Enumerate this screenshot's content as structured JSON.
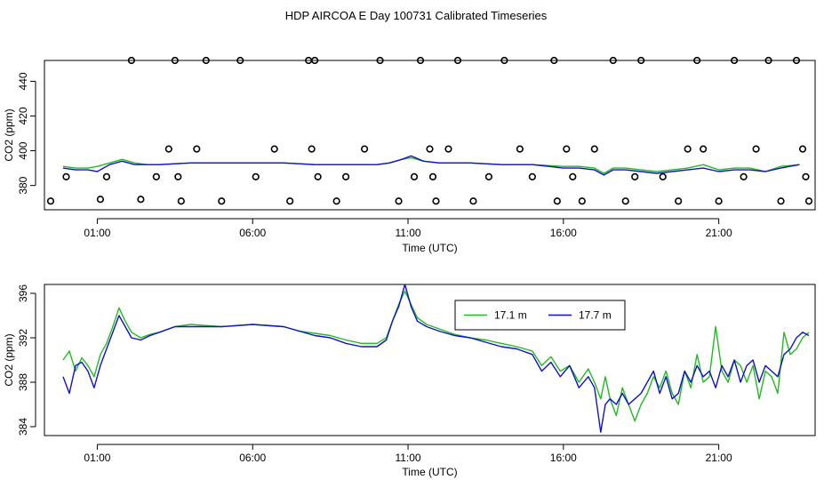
{
  "title": "HDP AIRCOA E  Day 100731  Calibrated Timeseries",
  "colors": {
    "green": "#22bb22",
    "blue": "#1111cc",
    "axis": "#000000"
  },
  "chart_data": [
    {
      "type": "line",
      "name": "calibration-panel",
      "xlabel": "Time (UTC)",
      "ylabel": "CO2 (ppm)",
      "xlim": [
        -0.7,
        24.1
      ],
      "ylim": [
        366,
        452
      ],
      "xticks": [
        1,
        6,
        11,
        16,
        21
      ],
      "xtick_labels": [
        "01:00",
        "06:00",
        "11:00",
        "16:00",
        "21:00"
      ],
      "yticks": [
        380,
        400,
        420,
        440
      ],
      "ytick_labels": [
        "380",
        "400",
        "420",
        "440"
      ],
      "series": [
        {
          "color": "green",
          "x": [
            -0.1,
            0.3,
            0.7,
            1.0,
            1.4,
            1.8,
            2.2,
            2.6,
            3.0,
            4,
            5,
            6,
            7,
            8,
            9,
            10,
            10.4,
            10.8,
            11.1,
            11.5,
            12,
            13,
            14,
            15,
            16,
            16.5,
            17,
            17.3,
            17.6,
            18,
            18.5,
            19,
            19.5,
            20,
            20.5,
            21,
            21.5,
            22,
            22.5,
            23,
            23.6
          ],
          "y": [
            391,
            390,
            390,
            391,
            393,
            395,
            393,
            392,
            392,
            393,
            393,
            393,
            393,
            392,
            392,
            392,
            393,
            395,
            396,
            394,
            393,
            393,
            392,
            392,
            391,
            391,
            390,
            387,
            390,
            390,
            389,
            388,
            389,
            390,
            392,
            389,
            390,
            390,
            388,
            391,
            392
          ]
        },
        {
          "color": "blue",
          "x": [
            -0.1,
            0.3,
            0.7,
            1.0,
            1.4,
            1.8,
            2.2,
            2.6,
            3.0,
            4,
            5,
            6,
            7,
            8,
            9,
            10,
            10.4,
            10.8,
            11.1,
            11.5,
            12,
            13,
            14,
            15,
            16,
            16.5,
            17,
            17.3,
            17.6,
            18,
            18.5,
            19,
            19.5,
            20,
            20.5,
            21,
            21.5,
            22,
            22.5,
            23,
            23.6
          ],
          "y": [
            390,
            389,
            389,
            388,
            392,
            394,
            392,
            392,
            392,
            393,
            393,
            393,
            393,
            392,
            392,
            392,
            393,
            395,
            397,
            394,
            393,
            393,
            392,
            392,
            390,
            390,
            389,
            386,
            389,
            389,
            388,
            387,
            388,
            389,
            390,
            388,
            389,
            389,
            388,
            390,
            392
          ]
        }
      ],
      "points": {
        "x": [
          -0.5,
          0.0,
          1.1,
          1.3,
          2.1,
          2.4,
          2.9,
          3.3,
          3.5,
          3.6,
          3.7,
          4.2,
          4.5,
          5.0,
          5.6,
          6.1,
          6.7,
          7.2,
          7.8,
          7.9,
          8.0,
          8.1,
          8.7,
          9.0,
          9.6,
          10.1,
          10.7,
          11.2,
          11.4,
          11.7,
          11.8,
          11.9,
          12.3,
          12.6,
          13.1,
          13.6,
          14.1,
          14.6,
          15.0,
          15.7,
          15.8,
          16.1,
          16.3,
          16.6,
          17.0,
          17.6,
          18.0,
          18.3,
          18.5,
          19.2,
          19.7,
          20.0,
          20.3,
          20.5,
          21.0,
          21.5,
          21.8,
          22.2,
          22.6,
          23.0,
          23.5,
          23.7,
          23.8,
          23.9
        ],
        "y": [
          371,
          385,
          372,
          385,
          452,
          372,
          385,
          401,
          452,
          385,
          371,
          401,
          452,
          371,
          452,
          385,
          401,
          371,
          452,
          401,
          452,
          385,
          371,
          385,
          401,
          452,
          371,
          385,
          452,
          401,
          385,
          371,
          401,
          452,
          371,
          385,
          452,
          401,
          385,
          452,
          371,
          401,
          385,
          371,
          401,
          452,
          371,
          385,
          452,
          385,
          371,
          401,
          452,
          401,
          371,
          452,
          385,
          401,
          452,
          371,
          452,
          401,
          385,
          371
        ]
      }
    },
    {
      "type": "line",
      "name": "timeseries-panel",
      "xlabel": "Time (UTC)",
      "ylabel": "CO2 (ppm)",
      "xlim": [
        -0.7,
        24.1
      ],
      "ylim": [
        383.2,
        396.8
      ],
      "xticks": [
        1,
        6,
        11,
        16,
        21
      ],
      "xtick_labels": [
        "01:00",
        "06:00",
        "11:00",
        "16:00",
        "21:00"
      ],
      "yticks": [
        384,
        388,
        392,
        396
      ],
      "ytick_labels": [
        "384",
        "388",
        "392",
        "396"
      ],
      "legend": {
        "position": "top-center",
        "entries": [
          "17.1 m",
          "17.7 m"
        ]
      },
      "series": [
        {
          "name": "17.1 m",
          "color": "green",
          "x": [
            -0.1,
            0.1,
            0.3,
            0.5,
            0.7,
            0.9,
            1.1,
            1.3,
            1.5,
            1.7,
            1.9,
            2.1,
            2.4,
            2.7,
            3.0,
            3.5,
            4.0,
            5.0,
            6.0,
            7.0,
            7.5,
            8.0,
            8.5,
            9.0,
            9.5,
            10.0,
            10.3,
            10.5,
            10.7,
            10.9,
            11.1,
            11.3,
            11.6,
            12.0,
            12.5,
            13.0,
            13.5,
            14.0,
            14.5,
            15.0,
            15.3,
            15.6,
            15.9,
            16.2,
            16.5,
            16.8,
            17.0,
            17.2,
            17.35,
            17.5,
            17.7,
            17.9,
            18.1,
            18.3,
            18.5,
            18.7,
            18.9,
            19.1,
            19.3,
            19.5,
            19.7,
            19.9,
            20.1,
            20.3,
            20.5,
            20.7,
            20.9,
            21.1,
            21.3,
            21.5,
            21.7,
            21.9,
            22.1,
            22.3,
            22.5,
            22.7,
            22.9,
            23.1,
            23.3,
            23.5,
            23.7,
            23.9
          ],
          "y": [
            390.0,
            390.8,
            389.0,
            390.2,
            389.5,
            388.5,
            390.5,
            391.5,
            393.0,
            394.7,
            393.5,
            392.5,
            392.0,
            392.3,
            392.5,
            393.0,
            393.2,
            393.0,
            393.2,
            393.0,
            392.6,
            392.4,
            392.2,
            391.8,
            391.5,
            391.5,
            392.0,
            393.5,
            395.0,
            396.2,
            395.0,
            393.8,
            393.2,
            392.8,
            392.3,
            392.0,
            391.8,
            391.5,
            391.2,
            390.8,
            389.5,
            390.3,
            389.0,
            389.5,
            388.0,
            389.2,
            388.0,
            386.5,
            388.5,
            386.5,
            385.0,
            387.5,
            386.0,
            384.5,
            386.0,
            387.0,
            388.5,
            387.5,
            389.0,
            387.0,
            386.0,
            389.0,
            387.5,
            390.5,
            388.0,
            388.5,
            393.0,
            389.0,
            388.0,
            390.0,
            389.5,
            388.0,
            389.5,
            386.5,
            389.0,
            388.5,
            387.0,
            392.5,
            390.5,
            391.0,
            392.0,
            392.5
          ]
        },
        {
          "name": "17.7 m",
          "color": "blue",
          "x": [
            -0.1,
            0.1,
            0.3,
            0.5,
            0.7,
            0.9,
            1.1,
            1.3,
            1.5,
            1.7,
            1.9,
            2.1,
            2.4,
            2.7,
            3.0,
            3.5,
            4.0,
            5.0,
            6.0,
            7.0,
            7.5,
            8.0,
            8.5,
            9.0,
            9.5,
            10.0,
            10.3,
            10.5,
            10.7,
            10.9,
            11.1,
            11.3,
            11.6,
            12.0,
            12.5,
            13.0,
            13.5,
            14.0,
            14.5,
            15.0,
            15.3,
            15.6,
            15.9,
            16.2,
            16.5,
            16.8,
            17.0,
            17.2,
            17.35,
            17.5,
            17.7,
            17.9,
            18.1,
            18.3,
            18.5,
            18.7,
            18.9,
            19.1,
            19.3,
            19.5,
            19.7,
            19.9,
            20.1,
            20.3,
            20.5,
            20.7,
            20.9,
            21.1,
            21.3,
            21.5,
            21.7,
            21.9,
            22.1,
            22.3,
            22.5,
            22.7,
            22.9,
            23.1,
            23.3,
            23.5,
            23.7,
            23.9
          ],
          "y": [
            388.5,
            387.0,
            389.5,
            389.8,
            389.0,
            387.5,
            389.5,
            391.0,
            392.5,
            394.0,
            393.0,
            392.0,
            391.8,
            392.2,
            392.5,
            393.0,
            393.0,
            393.0,
            393.2,
            393.0,
            392.6,
            392.2,
            392.0,
            391.5,
            391.2,
            391.2,
            391.8,
            393.5,
            394.8,
            396.8,
            394.8,
            393.5,
            393.0,
            392.6,
            392.2,
            392.0,
            391.6,
            391.2,
            391.0,
            390.5,
            389.0,
            389.8,
            388.5,
            389.5,
            387.5,
            388.5,
            387.5,
            383.5,
            386.0,
            386.5,
            386.0,
            387.0,
            386.0,
            386.5,
            387.0,
            388.0,
            389.0,
            387.0,
            388.5,
            386.5,
            387.0,
            389.0,
            388.0,
            389.5,
            388.5,
            389.0,
            387.5,
            389.5,
            388.5,
            390.0,
            388.0,
            389.5,
            390.0,
            388.0,
            389.5,
            389.0,
            388.5,
            390.5,
            391.0,
            392.0,
            392.5,
            392.2
          ]
        }
      ]
    }
  ]
}
